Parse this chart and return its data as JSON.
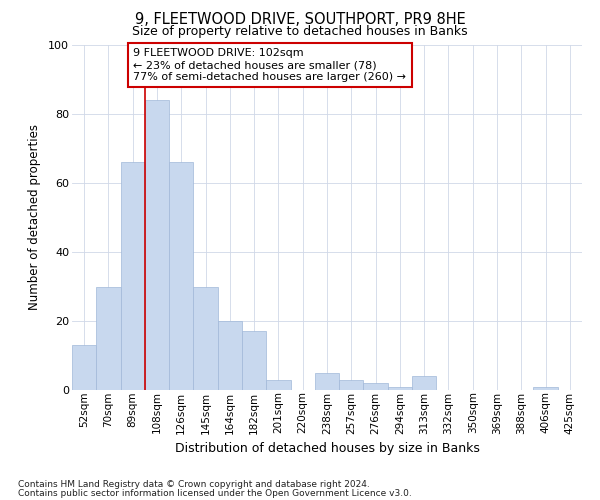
{
  "title": "9, FLEETWOOD DRIVE, SOUTHPORT, PR9 8HE",
  "subtitle": "Size of property relative to detached houses in Banks",
  "xlabel": "Distribution of detached houses by size in Banks",
  "ylabel": "Number of detached properties",
  "bar_color": "#c8d8ee",
  "bar_edge_color": "#a0b8d8",
  "background_color": "#ffffff",
  "plot_bg_color": "#ffffff",
  "categories": [
    "52sqm",
    "70sqm",
    "89sqm",
    "108sqm",
    "126sqm",
    "145sqm",
    "164sqm",
    "182sqm",
    "201sqm",
    "220sqm",
    "238sqm",
    "257sqm",
    "276sqm",
    "294sqm",
    "313sqm",
    "332sqm",
    "350sqm",
    "369sqm",
    "388sqm",
    "406sqm",
    "425sqm"
  ],
  "values": [
    13,
    30,
    66,
    84,
    66,
    30,
    20,
    17,
    3,
    0,
    5,
    3,
    2,
    1,
    4,
    0,
    0,
    0,
    0,
    1,
    0
  ],
  "ylim": [
    0,
    100
  ],
  "vline_x": 2.5,
  "vline_color": "#cc0000",
  "annotation_text": "9 FLEETWOOD DRIVE: 102sqm\n← 23% of detached houses are smaller (78)\n77% of semi-detached houses are larger (260) →",
  "annotation_box_color": "#ffffff",
  "annotation_box_edge_color": "#cc0000",
  "footnote1": "Contains HM Land Registry data © Crown copyright and database right 2024.",
  "footnote2": "Contains public sector information licensed under the Open Government Licence v3.0.",
  "grid_color": "#d0d8e8"
}
